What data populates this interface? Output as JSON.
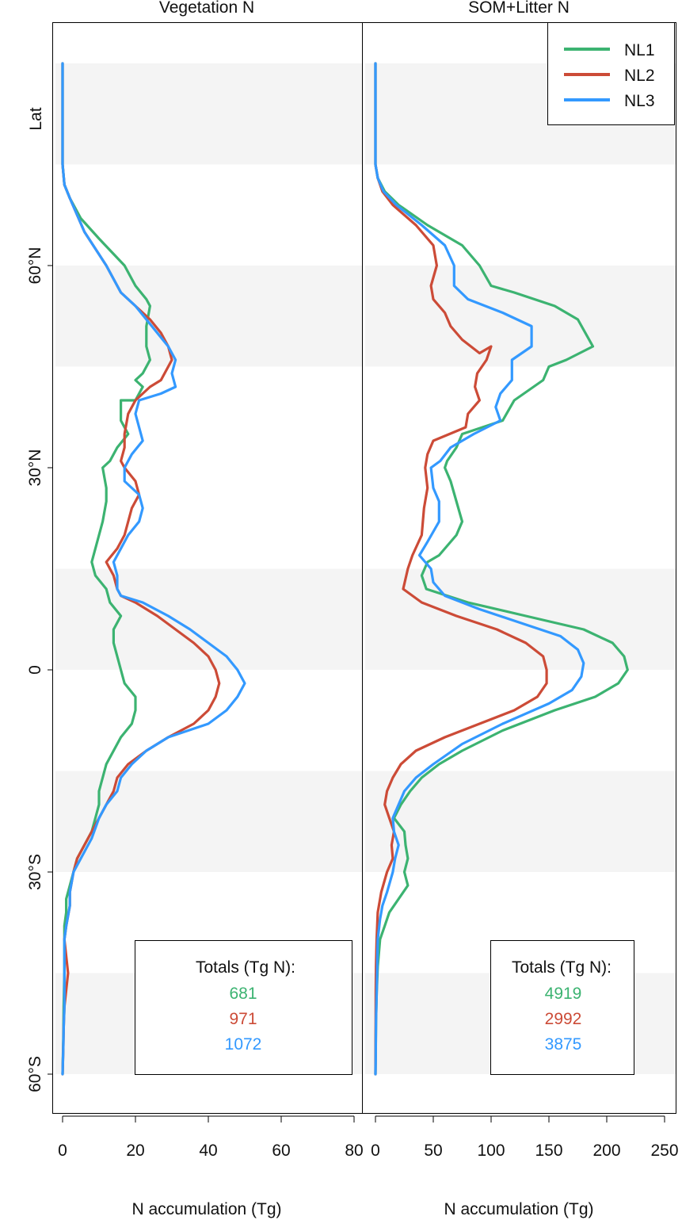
{
  "colors": {
    "NL1": "#3cb371",
    "NL2": "#cc4b37",
    "NL3": "#3399ff",
    "band": "#f4f4f4",
    "axis": "#000000"
  },
  "y_axis": {
    "title": "Lat",
    "ticks": [
      60,
      30,
      0,
      -30,
      -60
    ],
    "tick_labels": [
      "60°N",
      "30°N",
      "0",
      "30°S",
      "60°S"
    ]
  },
  "legend": {
    "position": "top-right",
    "items": [
      "NL1",
      "NL2",
      "NL3"
    ]
  },
  "chart_data": [
    {
      "type": "line",
      "title": "Vegetation N",
      "xlabel": "N accumulation (Tg)",
      "ylabel": "Lat",
      "xlim": [
        0,
        80
      ],
      "ylim": [
        -66,
        96
      ],
      "x_ticks": [
        0,
        20,
        40,
        60,
        80
      ],
      "x_tick_labels": [
        "0",
        "20",
        "40",
        "60",
        "80"
      ],
      "grid": false,
      "shaded_lat_bands": [
        [
          75,
          90
        ],
        [
          45,
          60
        ],
        [
          0,
          15
        ],
        [
          -30,
          -15
        ],
        [
          -60,
          -45
        ]
      ],
      "totals_title": "Totals (Tg N):",
      "totals": [
        "681",
        "971",
        "1072"
      ],
      "series": [
        {
          "name": "NL1",
          "x": [
            0,
            0,
            0.5,
            2,
            5,
            10,
            17,
            20,
            23,
            24,
            23,
            23,
            24,
            22,
            20,
            22,
            20,
            16,
            16,
            18,
            15,
            13,
            11,
            12,
            12,
            11,
            10,
            8,
            9,
            12,
            13,
            16,
            14,
            14,
            15,
            16,
            17,
            20,
            20,
            19,
            16,
            14,
            12,
            11,
            10,
            10,
            9,
            8,
            6,
            4,
            3,
            2,
            1,
            1,
            0.5,
            0.5,
            0.5,
            0.3,
            0.2,
            0
          ],
          "y": [
            90,
            75,
            72,
            70,
            67,
            64,
            60,
            57,
            55,
            54,
            51,
            48,
            46,
            44,
            43,
            42,
            40,
            40,
            37,
            35,
            33,
            31,
            30,
            27,
            25,
            22,
            20,
            16,
            14,
            12,
            10,
            8,
            6,
            4,
            2,
            0,
            -2,
            -4,
            -6,
            -8,
            -10,
            -12,
            -14,
            -16,
            -18,
            -20,
            -22,
            -24,
            -26,
            -28,
            -30,
            -32,
            -34,
            -36,
            -38,
            -40,
            -45,
            -50,
            -55,
            -60
          ]
        },
        {
          "name": "NL2",
          "x": [
            0,
            0,
            0.5,
            2,
            6,
            12,
            16,
            20,
            24,
            27,
            29,
            30,
            28,
            27,
            24,
            20,
            18,
            17,
            17,
            16,
            17,
            20,
            21,
            19,
            18,
            17,
            15,
            12,
            14,
            15,
            16,
            20,
            26,
            31,
            36,
            40,
            42,
            43,
            42,
            40,
            36,
            29,
            23,
            18,
            15,
            14,
            12,
            10,
            7,
            4,
            3,
            2,
            2,
            1,
            0.5,
            1.5,
            0.5,
            0.3,
            0.2,
            0
          ],
          "y": [
            90,
            75,
            72,
            70,
            65,
            60,
            56,
            54,
            52,
            50,
            48,
            46,
            44,
            43,
            42,
            40,
            38,
            35,
            33,
            31,
            30,
            28,
            26,
            24,
            22,
            20,
            18,
            16,
            14,
            12,
            11,
            10,
            8,
            6,
            4,
            2,
            0,
            -2,
            -4,
            -6,
            -8,
            -10,
            -12,
            -14,
            -16,
            -18,
            -20,
            -22,
            -25,
            -28,
            -30,
            -33,
            -35,
            -38,
            -40,
            -45,
            -50,
            -53,
            -56,
            -60
          ]
        },
        {
          "name": "NL3",
          "x": [
            0,
            0,
            0.5,
            2,
            6,
            12,
            16,
            20,
            23,
            26,
            29,
            31,
            30,
            31,
            27,
            21,
            20,
            21,
            22,
            19,
            17,
            17,
            21,
            22,
            21,
            18,
            16,
            14,
            15,
            15,
            16,
            22,
            29,
            35,
            40,
            45,
            48,
            50,
            48,
            45,
            40,
            29,
            23,
            19,
            16,
            15,
            12,
            10,
            8,
            5,
            3,
            2,
            2,
            1,
            0.5,
            0.5,
            0.5,
            0.3,
            0.2,
            0
          ],
          "y": [
            90,
            75,
            72,
            70,
            65,
            60,
            56,
            54,
            52,
            50,
            48,
            46,
            44,
            42,
            41,
            40,
            38,
            36,
            34,
            32,
            30,
            28,
            26,
            24,
            22,
            20,
            18,
            16,
            14,
            12,
            11,
            10,
            8,
            6,
            4,
            2,
            0,
            -2,
            -4,
            -6,
            -8,
            -10,
            -12,
            -14,
            -16,
            -18,
            -20,
            -22,
            -25,
            -28,
            -30,
            -33,
            -35,
            -38,
            -40,
            -45,
            -50,
            -53,
            -56,
            -60
          ]
        }
      ]
    },
    {
      "type": "line",
      "title": "SOM+Litter N",
      "xlabel": "N accumulation (Tg)",
      "ylabel": "",
      "xlim": [
        0,
        250
      ],
      "ylim": [
        -66,
        96
      ],
      "x_ticks": [
        0,
        50,
        100,
        150,
        200,
        250
      ],
      "x_tick_labels": [
        "0",
        "50",
        "100",
        "150",
        "200",
        "250"
      ],
      "grid": false,
      "shaded_lat_bands": [
        [
          75,
          90
        ],
        [
          45,
          60
        ],
        [
          0,
          15
        ],
        [
          -30,
          -15
        ],
        [
          -60,
          -45
        ]
      ],
      "totals_title": "Totals (Tg N):",
      "totals": [
        "4919",
        "2992",
        "3875"
      ],
      "series": [
        {
          "name": "NL1",
          "x": [
            0,
            0,
            2,
            8,
            20,
            45,
            75,
            90,
            100,
            120,
            155,
            175,
            188,
            165,
            150,
            145,
            120,
            110,
            75,
            70,
            62,
            60,
            65,
            70,
            75,
            70,
            60,
            55,
            45,
            40,
            44,
            80,
            130,
            180,
            205,
            215,
            218,
            210,
            190,
            155,
            110,
            75,
            55,
            40,
            30,
            22,
            16,
            25,
            26,
            28,
            25,
            28,
            20,
            12,
            8,
            4,
            2,
            1,
            0.5,
            0
          ],
          "y": [
            90,
            75,
            73,
            71,
            69,
            66,
            63,
            60,
            57,
            56,
            54,
            52,
            48,
            46,
            45,
            43,
            40,
            37,
            35,
            33,
            31,
            30,
            28,
            25,
            22,
            20,
            18,
            17,
            16,
            14,
            12,
            10,
            8,
            6,
            4,
            2,
            0,
            -2,
            -4,
            -6,
            -9,
            -12,
            -14,
            -16,
            -18,
            -20,
            -22,
            -24,
            -26,
            -28,
            -30,
            -32,
            -34,
            -36,
            -38,
            -40,
            -44,
            -48,
            -52,
            -60
          ]
        },
        {
          "name": "NL2",
          "x": [
            0,
            0,
            2,
            6,
            15,
            35,
            50,
            53,
            48,
            50,
            60,
            65,
            75,
            90,
            100,
            96,
            88,
            86,
            90,
            80,
            78,
            50,
            45,
            43,
            45,
            42,
            40,
            32,
            28,
            24,
            40,
            70,
            105,
            130,
            145,
            148,
            148,
            140,
            120,
            90,
            60,
            35,
            22,
            15,
            10,
            8,
            12,
            16,
            14,
            15,
            10,
            5,
            2,
            1.5,
            1,
            0.5,
            0.3,
            0.2,
            0.1,
            0
          ],
          "y": [
            90,
            75,
            73,
            71,
            69,
            66,
            63,
            60,
            57,
            55,
            53,
            51,
            49,
            47,
            48,
            46,
            44,
            42,
            40,
            38,
            36,
            34,
            32,
            30,
            27,
            24,
            20,
            17,
            15,
            12,
            10,
            8,
            6,
            4,
            2,
            0,
            -2,
            -4,
            -6,
            -8,
            -10,
            -12,
            -14,
            -16,
            -18,
            -20,
            -22,
            -24,
            -26,
            -28,
            -30,
            -33,
            -36,
            -38,
            -40,
            -44,
            -48,
            -52,
            -56,
            -60
          ]
        },
        {
          "name": "NL3",
          "x": [
            0,
            0,
            2,
            7,
            18,
            40,
            60,
            68,
            68,
            80,
            110,
            135,
            135,
            118,
            118,
            108,
            104,
            108,
            85,
            65,
            56,
            48,
            50,
            55,
            55,
            45,
            38,
            48,
            50,
            60,
            90,
            125,
            160,
            175,
            180,
            178,
            170,
            150,
            110,
            75,
            50,
            35,
            25,
            20,
            15,
            16,
            20,
            17,
            15,
            10,
            6,
            4,
            2,
            1.5,
            1,
            0.5,
            0.3,
            0.2,
            0
          ],
          "y": [
            90,
            75,
            73,
            71,
            69,
            66,
            63,
            60,
            57,
            55,
            53,
            51,
            48,
            46,
            43,
            41,
            39,
            37,
            35,
            33,
            31,
            30,
            27,
            25,
            22,
            19,
            17,
            15,
            13,
            11,
            9,
            7,
            5,
            3,
            1,
            -1,
            -3,
            -5,
            -8,
            -11,
            -14,
            -16,
            -18,
            -20,
            -22,
            -24,
            -26,
            -28,
            -30,
            -33,
            -35,
            -37,
            -40,
            -44,
            -48,
            -52,
            -56,
            -58,
            -60
          ]
        }
      ]
    }
  ]
}
